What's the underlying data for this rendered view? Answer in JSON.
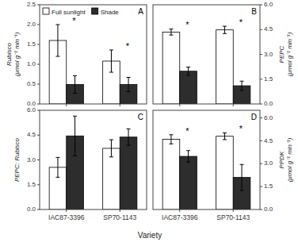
{
  "chart_data": [
    {
      "type": "bar",
      "title": "A",
      "categories": [
        "IAC87-3396",
        "SP70-1143"
      ],
      "series": [
        {
          "name": "Full sunlight",
          "color": "#ffffff",
          "values": [
            1.6,
            1.08
          ],
          "errors": [
            0.4,
            0.28
          ]
        },
        {
          "name": "Shade",
          "color": "#2d2d2d",
          "values": [
            0.49,
            0.49
          ],
          "errors": [
            0.22,
            0.18
          ]
        }
      ],
      "ylabel": "Rubisco\n(μmol g⁻¹ min⁻¹)",
      "ylim": [
        0,
        2.5
      ],
      "yticks": [
        {
          "value": 0.0,
          "label": "0.0"
        },
        0.5,
        {
          "value": 1.0,
          "label": "1.0"
        },
        1.5,
        {
          "value": 2.0,
          "label": "2.0"
        },
        2.5
      ],
      "tick_labels": "y",
      "legend": "upper left",
      "annotations": [
        {
          "text": "*",
          "series": "Full sunlight",
          "category": "IAC87-3396"
        },
        {
          "text": "*",
          "series": "Full sunlight",
          "category": "SP70-1143"
        }
      ]
    },
    {
      "type": "bar",
      "title": "B",
      "categories": [
        "IAC87-3396",
        "SP70-1143"
      ],
      "series": [
        {
          "name": "Full sunlight",
          "color": "#ffffff",
          "values": [
            4.35,
            4.48
          ],
          "errors": [
            0.18,
            0.22
          ]
        },
        {
          "name": "Shade",
          "color": "#2d2d2d",
          "values": [
            1.98,
            1.1
          ],
          "errors": [
            0.25,
            0.28
          ]
        }
      ],
      "ylabel": "PEPC\n(μmol g⁻¹ min⁻¹)",
      "ylim": [
        0,
        6.0
      ],
      "yticks": [
        {
          "value": 0.0,
          "label": "0.0"
        },
        1.5,
        {
          "value": 3.0,
          "label": "3.0"
        },
        4.5,
        {
          "value": 6.0,
          "label": "6.0"
        }
      ],
      "tick_labels": "y",
      "annotations": [
        {
          "text": "*",
          "series": "Full sunlight",
          "category": "IAC87-3396"
        },
        {
          "text": "*",
          "series": "Full sunlight",
          "category": "SP70-1143"
        }
      ]
    },
    {
      "type": "bar",
      "title": "C",
      "categories": [
        "IAC87-3396",
        "SP70-1143"
      ],
      "series": [
        {
          "name": "Full sunlight",
          "color": "#ffffff",
          "values": [
            2.55,
            3.7
          ],
          "errors": [
            0.6,
            0.52
          ]
        },
        {
          "name": "Shade",
          "color": "#2d2d2d",
          "values": [
            4.45,
            4.38
          ],
          "errors": [
            1.2,
            0.5
          ]
        }
      ],
      "ylabel": "PEPC: Rubisco",
      "xlabel": "Variety",
      "ylim": [
        0,
        6.0
      ],
      "yticks": [
        {
          "value": 0.0,
          "label": "0.0"
        },
        1.5,
        {
          "value": 3.0,
          "label": "3.0"
        },
        4.5,
        {
          "value": 6.0,
          "label": "6.0"
        }
      ]
    },
    {
      "type": "bar",
      "title": "D",
      "categories": [
        "IAC87-3396",
        "SP70-1143"
      ],
      "series": [
        {
          "name": "Full sunlight",
          "color": "#ffffff",
          "values": [
            4.6,
            4.8
          ],
          "errors": [
            0.3,
            0.22
          ]
        },
        {
          "name": "Shade",
          "color": "#2d2d2d",
          "values": [
            3.48,
            2.1
          ],
          "errors": [
            0.38,
            0.85
          ]
        }
      ],
      "ylabel": "PPDK\n(μmol g⁻¹ min⁻¹)",
      "ylim": [
        0,
        6.5
      ],
      "yticks": [
        {
          "value": 0.0,
          "label": "0.0"
        },
        1.5,
        {
          "value": 3.0,
          "label": "3.0"
        },
        4.5,
        {
          "value": 6.0,
          "label": "6.0"
        }
      ],
      "annotations": [
        {
          "text": "*",
          "series": "Full sunlight",
          "category": "IAC87-3396"
        },
        {
          "text": "*",
          "series": "Full sunlight",
          "category": "SP70-1143"
        }
      ]
    }
  ]
}
